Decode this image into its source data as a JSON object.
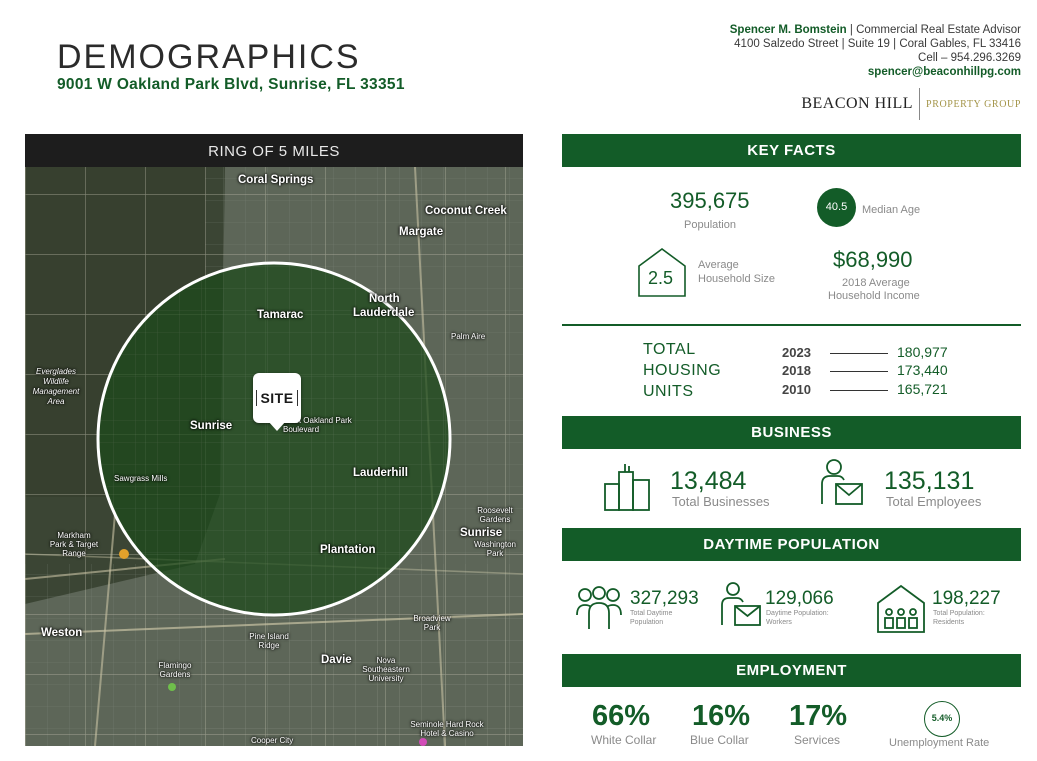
{
  "header": {
    "title": "DEMOGRAPHICS",
    "address": "9001 W Oakland Park Blvd, Sunrise, FL 33351"
  },
  "contact": {
    "name": "Spencer M. Bomstein",
    "role": " | Commercial Real Estate Advisor",
    "office": "4100 Salzedo Street | Suite 19 | Coral Gables, FL 33416",
    "cell": "Cell – 954.296.3269",
    "email": "spencer@beaconhillpg.com"
  },
  "logo": {
    "name": "BEACON HILL",
    "tagline": "PROPERTY GROUP"
  },
  "map": {
    "heading": "RING OF 5 MILES",
    "site_label": "SITE",
    "labels": {
      "coral_springs": "Coral Springs",
      "coconut_creek": "Coconut Creek",
      "margate": "Margate",
      "tamarac": "Tamarac",
      "north_lauderdale_1": "North",
      "north_lauderdale_2": "Lauderdale",
      "sunrise": "Sunrise",
      "lauderhill": "Lauderhill",
      "plantation": "Plantation",
      "sunrise_east": "Sunrise",
      "weston": "Weston",
      "davie": "Davie",
      "everglades": "Everglades Wildlife Management Area",
      "sawgrass": "Sawgrass Mills",
      "markham": "Markham Park & Target Range",
      "pine_island": "Pine Island Ridge",
      "flamingo": "Flamingo Gardens",
      "nova": "Nova Southeastern University",
      "seminole": "Seminole Hard Rock Hotel & Casino",
      "cooper": "Cooper City",
      "west_oakland": "West Oakland Park Boulevard",
      "palm_aire": "Palm Aire",
      "broadview": "Broadview Park",
      "roosevelt": "Roosevelt Gardens",
      "washington": "Washington Park"
    }
  },
  "key_facts": {
    "heading": "KEY FACTS",
    "population": {
      "value": "395,675",
      "label": "Population"
    },
    "median_age": {
      "value": "40.5",
      "label": "Median Age"
    },
    "household_size": {
      "value": "2.5",
      "label_1": "Average",
      "label_2": "Household Size"
    },
    "household_income": {
      "value": "$68,990",
      "label_1": "2018 Average",
      "label_2": "Household Income"
    }
  },
  "housing": {
    "title_1": "TOTAL",
    "title_2": "HOUSING",
    "title_3": "UNITS",
    "rows": [
      {
        "year": "2023",
        "value": "180,977"
      },
      {
        "year": "2018",
        "value": "173,440"
      },
      {
        "year": "2010",
        "value": "165,721"
      }
    ]
  },
  "business": {
    "heading": "BUSINESS",
    "businesses": {
      "value": "13,484",
      "label": "Total Businesses"
    },
    "employees": {
      "value": "135,131",
      "label": "Total Employees"
    }
  },
  "daytime": {
    "heading": "DAYTIME POPULATION",
    "total": {
      "value": "327,293",
      "label_1": "Total Daytime",
      "label_2": "Population"
    },
    "workers": {
      "value": "129,066",
      "label_1": "Daytime Population:",
      "label_2": "Workers"
    },
    "residents": {
      "value": "198,227",
      "label_1": "Total Population:",
      "label_2": "Residents"
    }
  },
  "employment": {
    "heading": "EMPLOYMENT",
    "white_collar": {
      "value": "66%",
      "label": "White Collar"
    },
    "blue_collar": {
      "value": "16%",
      "label": "Blue Collar"
    },
    "services": {
      "value": "17%",
      "label": "Services"
    },
    "unemployment": {
      "value": "5.4%",
      "label": "Unemployment Rate"
    }
  },
  "colors": {
    "brand_green": "#135c28",
    "gold": "#a49549"
  },
  "icons": [
    "house-icon",
    "building-icon",
    "worker-icon",
    "people-group-icon",
    "home-residents-icon"
  ]
}
